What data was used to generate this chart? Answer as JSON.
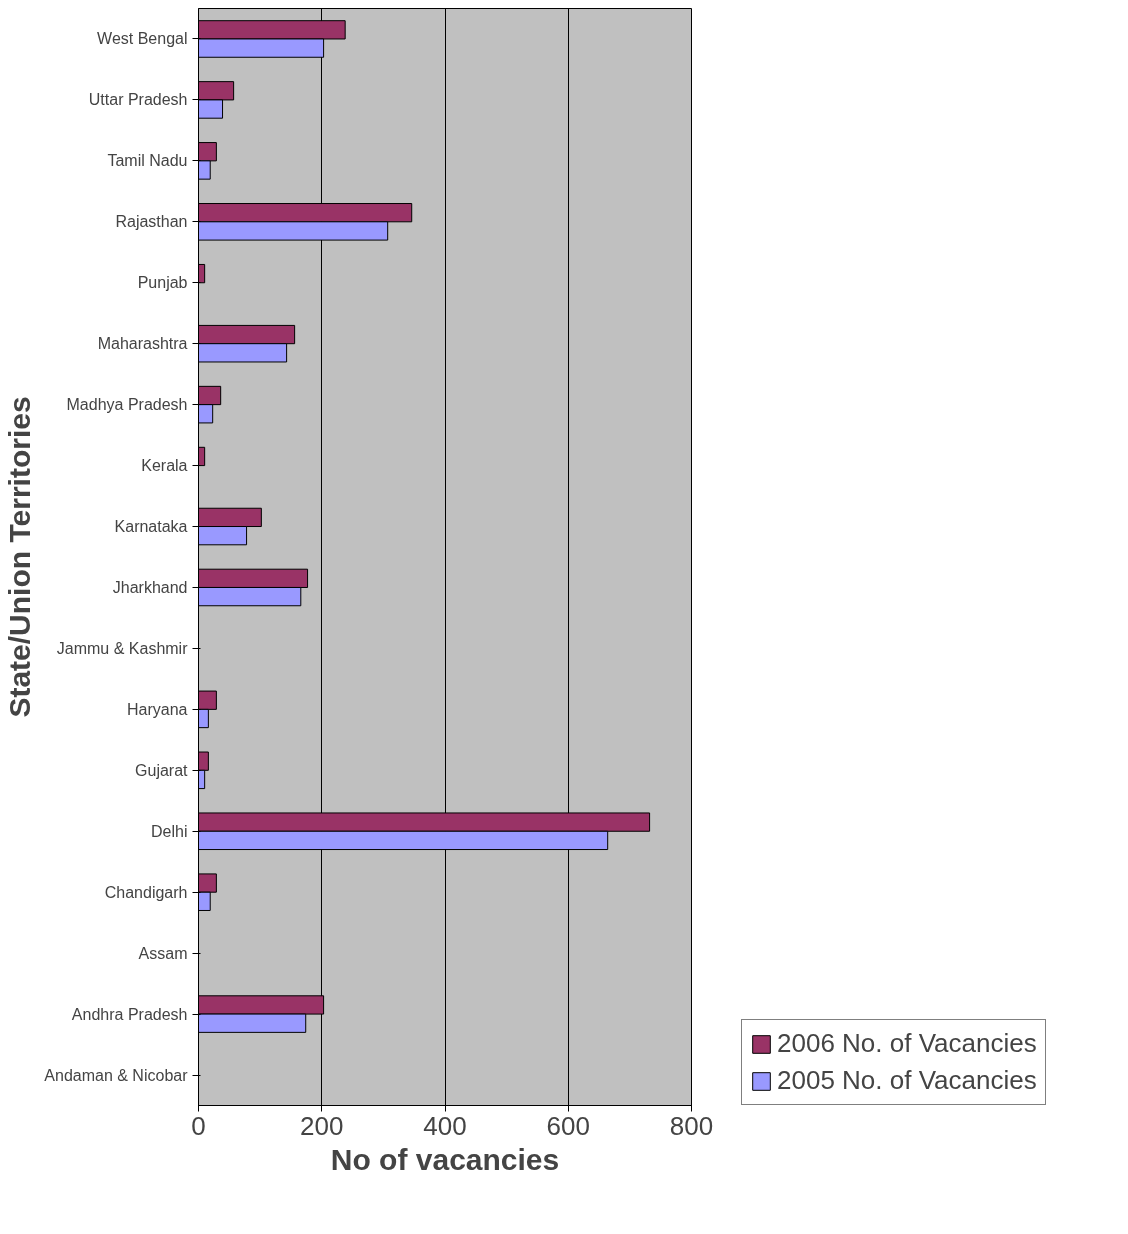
{
  "chart_data": {
    "type": "bar",
    "orientation": "horizontal",
    "xlabel": "No of vacancies",
    "ylabel": "State/Union Territories",
    "categories": [
      "West Bengal",
      "Uttar Pradesh",
      "Tamil Nadu",
      "Rajasthan",
      "Punjab",
      "Maharashtra",
      "Madhya Pradesh",
      "Kerala",
      "Karnataka",
      "Jharkhand",
      "Jammu & Kashmir",
      "Haryana",
      "Gujarat",
      "Delhi",
      "Chandigarh",
      "Assam",
      "Andhra Pradesh",
      "Andaman & Nicobar"
    ],
    "series": [
      {
        "name": "2006 No. of Vacancies",
        "color": "#993366",
        "values": [
          238,
          57,
          29,
          346,
          10,
          156,
          36,
          10,
          102,
          177,
          0,
          29,
          16,
          732,
          29,
          0,
          203,
          0
        ]
      },
      {
        "name": "2005 No. of Vacancies",
        "color": "#9999ff",
        "values": [
          203,
          39,
          19,
          307,
          0,
          143,
          23,
          0,
          78,
          166,
          0,
          16,
          10,
          664,
          19,
          0,
          174,
          0
        ]
      }
    ],
    "xlim": [
      0,
      800
    ],
    "xticks": [
      0,
      200,
      400,
      600,
      800
    ],
    "grid": "x",
    "legend": "right"
  }
}
